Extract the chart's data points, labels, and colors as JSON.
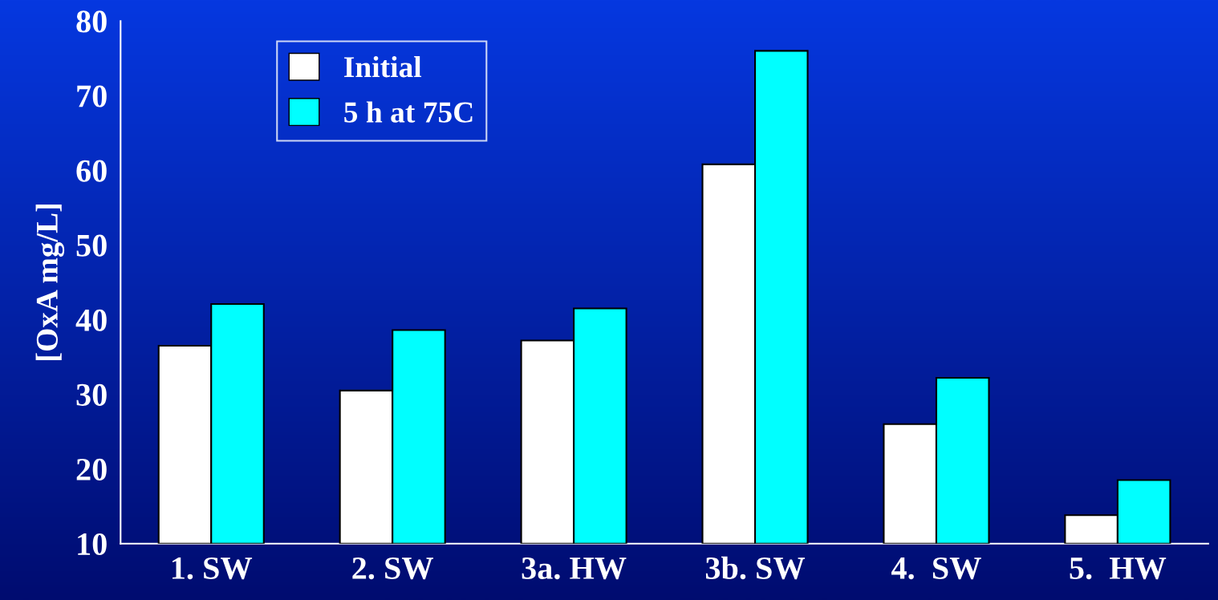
{
  "chart_data": {
    "type": "bar",
    "ylabel": "[OxA mg/L]",
    "categories": [
      "1. SW",
      "2. SW",
      "3a. HW",
      "3b. SW",
      "4.  SW",
      "5.  HW"
    ],
    "series": [
      {
        "name": "Initial",
        "color": "#ffffff",
        "values": [
          36.5,
          30.5,
          37.2,
          60.8,
          26.0,
          13.8
        ]
      },
      {
        "name": "5 h at 75C",
        "color": "#00ffff",
        "values": [
          42.1,
          38.6,
          41.5,
          76.0,
          32.2,
          18.5
        ]
      }
    ],
    "ylim": [
      10,
      80
    ],
    "yticks": [
      10,
      20,
      30,
      40,
      50,
      60,
      70,
      80
    ],
    "grid": false,
    "legend": "top left"
  }
}
